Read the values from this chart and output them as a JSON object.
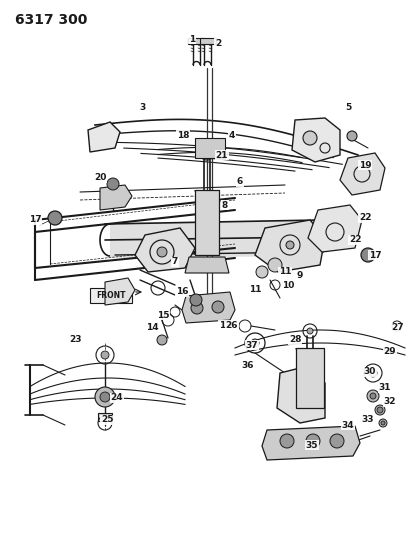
{
  "title": "6317 300",
  "bg_color": "#ffffff",
  "line_color": "#1a1a1a",
  "title_fontsize": 10,
  "label_fontsize": 6.5,
  "fig_width": 4.08,
  "fig_height": 5.33,
  "dpi": 100
}
